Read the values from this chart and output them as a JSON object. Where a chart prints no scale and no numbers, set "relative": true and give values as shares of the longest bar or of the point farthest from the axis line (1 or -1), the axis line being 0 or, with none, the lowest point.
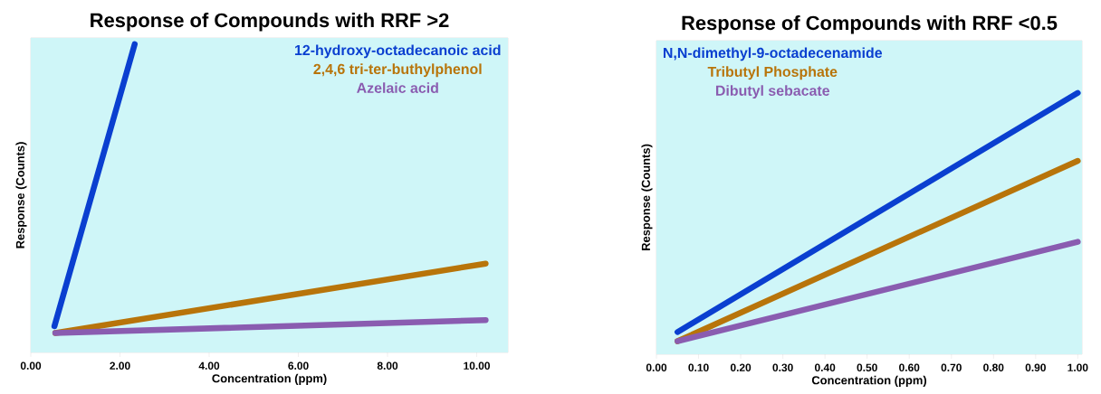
{
  "chart_data": [
    {
      "type": "line",
      "title": "Response of Compounds with RRF >2",
      "xlabel": "Concentration (ppm)",
      "ylabel": "Response (Counts)",
      "relative": true,
      "legend": "top right",
      "xlim": [
        0,
        10.7
      ],
      "xticks": [
        {
          "value": 0,
          "label": "0.00"
        },
        {
          "value": 2,
          "label": "2.00"
        },
        {
          "value": 4,
          "label": "4.00"
        },
        {
          "value": 6,
          "label": "6.00"
        },
        {
          "value": 8,
          "label": "8.00"
        },
        {
          "value": 10,
          "label": "10.00"
        }
      ],
      "series": [
        {
          "name": "12-hydroxy-octadecanoic acid",
          "color": "#0a3fd0",
          "x": [
            0.53,
            2.33
          ],
          "values": [
            0.085,
            1
          ]
        },
        {
          "name": "2,4,6 tri-ter-buthylphenol",
          "color": "#b8740a",
          "x": [
            0.55,
            10.2
          ],
          "values": [
            0.063,
            0.288
          ]
        },
        {
          "name": "Azelaic acid",
          "color": "#8a5cb0",
          "x": [
            0.55,
            10.2
          ],
          "values": [
            0.063,
            0.105
          ]
        }
      ]
    },
    {
      "type": "line",
      "title": "Response of Compounds with RRF <0.5",
      "xlabel": "Concentration (ppm)",
      "ylabel": "Response (Counts)",
      "relative": true,
      "legend": "top left",
      "xlim": [
        0,
        1.01
      ],
      "xticks": [
        {
          "value": 0,
          "label": "0.00"
        },
        {
          "value": 0.1,
          "label": "0.10"
        },
        {
          "value": 0.2,
          "label": "0.20"
        },
        {
          "value": 0.3,
          "label": "0.30"
        },
        {
          "value": 0.4,
          "label": "0.40"
        },
        {
          "value": 0.5,
          "label": "0.50"
        },
        {
          "value": 0.6,
          "label": "0.60"
        },
        {
          "value": 0.7,
          "label": "0.70"
        },
        {
          "value": 0.8,
          "label": "0.80"
        },
        {
          "value": 0.9,
          "label": "0.90"
        },
        {
          "value": 1,
          "label": "1.00"
        }
      ],
      "series": [
        {
          "name": "N,N-dimethyl-9-octadecenamide",
          "color": "#0a3fd0",
          "x": [
            0.05,
            1.0
          ],
          "values": [
            0.085,
            1
          ]
        },
        {
          "name": "Tributyl Phosphate",
          "color": "#b8740a",
          "x": [
            0.05,
            1.0
          ],
          "values": [
            0.05,
            0.74
          ]
        },
        {
          "name": "Dibutyl sebacate",
          "color": "#8a5cb0",
          "x": [
            0.05,
            1.0
          ],
          "values": [
            0.05,
            0.43
          ]
        }
      ]
    }
  ]
}
